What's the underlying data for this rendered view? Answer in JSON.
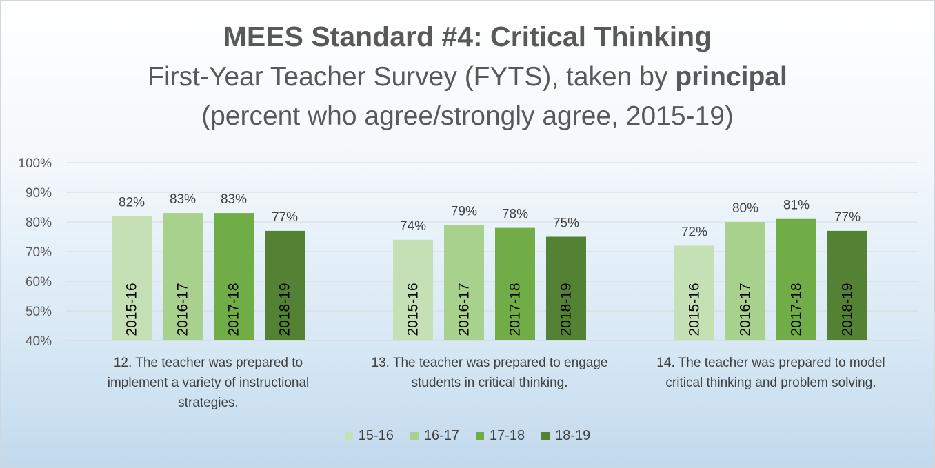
{
  "title": "MEES Standard #4: Critical Thinking",
  "subtitle_pre": "First-Year Teacher Survey (FYTS), taken by ",
  "subtitle_bold": "principal",
  "subtitle_line2": "(percent who agree/strongly agree, 2015-19)",
  "colors": {
    "s1": "#c5e0b4",
    "s2": "#a9d18e",
    "s3": "#70ad47",
    "s4": "#548235"
  },
  "chart_data": {
    "type": "bar",
    "categories": [
      [
        "12. The teacher was prepared to",
        "implement a variety of instructional",
        "strategies."
      ],
      [
        "13. The teacher was prepared to engage",
        "students in critical thinking."
      ],
      [
        "14. The teacher was prepared to model",
        "critical thinking and problem solving."
      ]
    ],
    "series": [
      {
        "name": "15-16",
        "bar_label": "2015-16",
        "values": [
          82,
          74,
          72
        ]
      },
      {
        "name": "16-17",
        "bar_label": "2016-17",
        "values": [
          83,
          79,
          80
        ]
      },
      {
        "name": "17-18",
        "bar_label": "2017-18",
        "values": [
          83,
          78,
          81
        ]
      },
      {
        "name": "18-19",
        "bar_label": "2018-19",
        "values": [
          77,
          75,
          77
        ]
      }
    ],
    "yticks": [
      "40%",
      "50%",
      "60%",
      "70%",
      "80%",
      "90%",
      "100%"
    ],
    "ylim": [
      40,
      100
    ],
    "grid": true,
    "legend_position": "bottom"
  }
}
